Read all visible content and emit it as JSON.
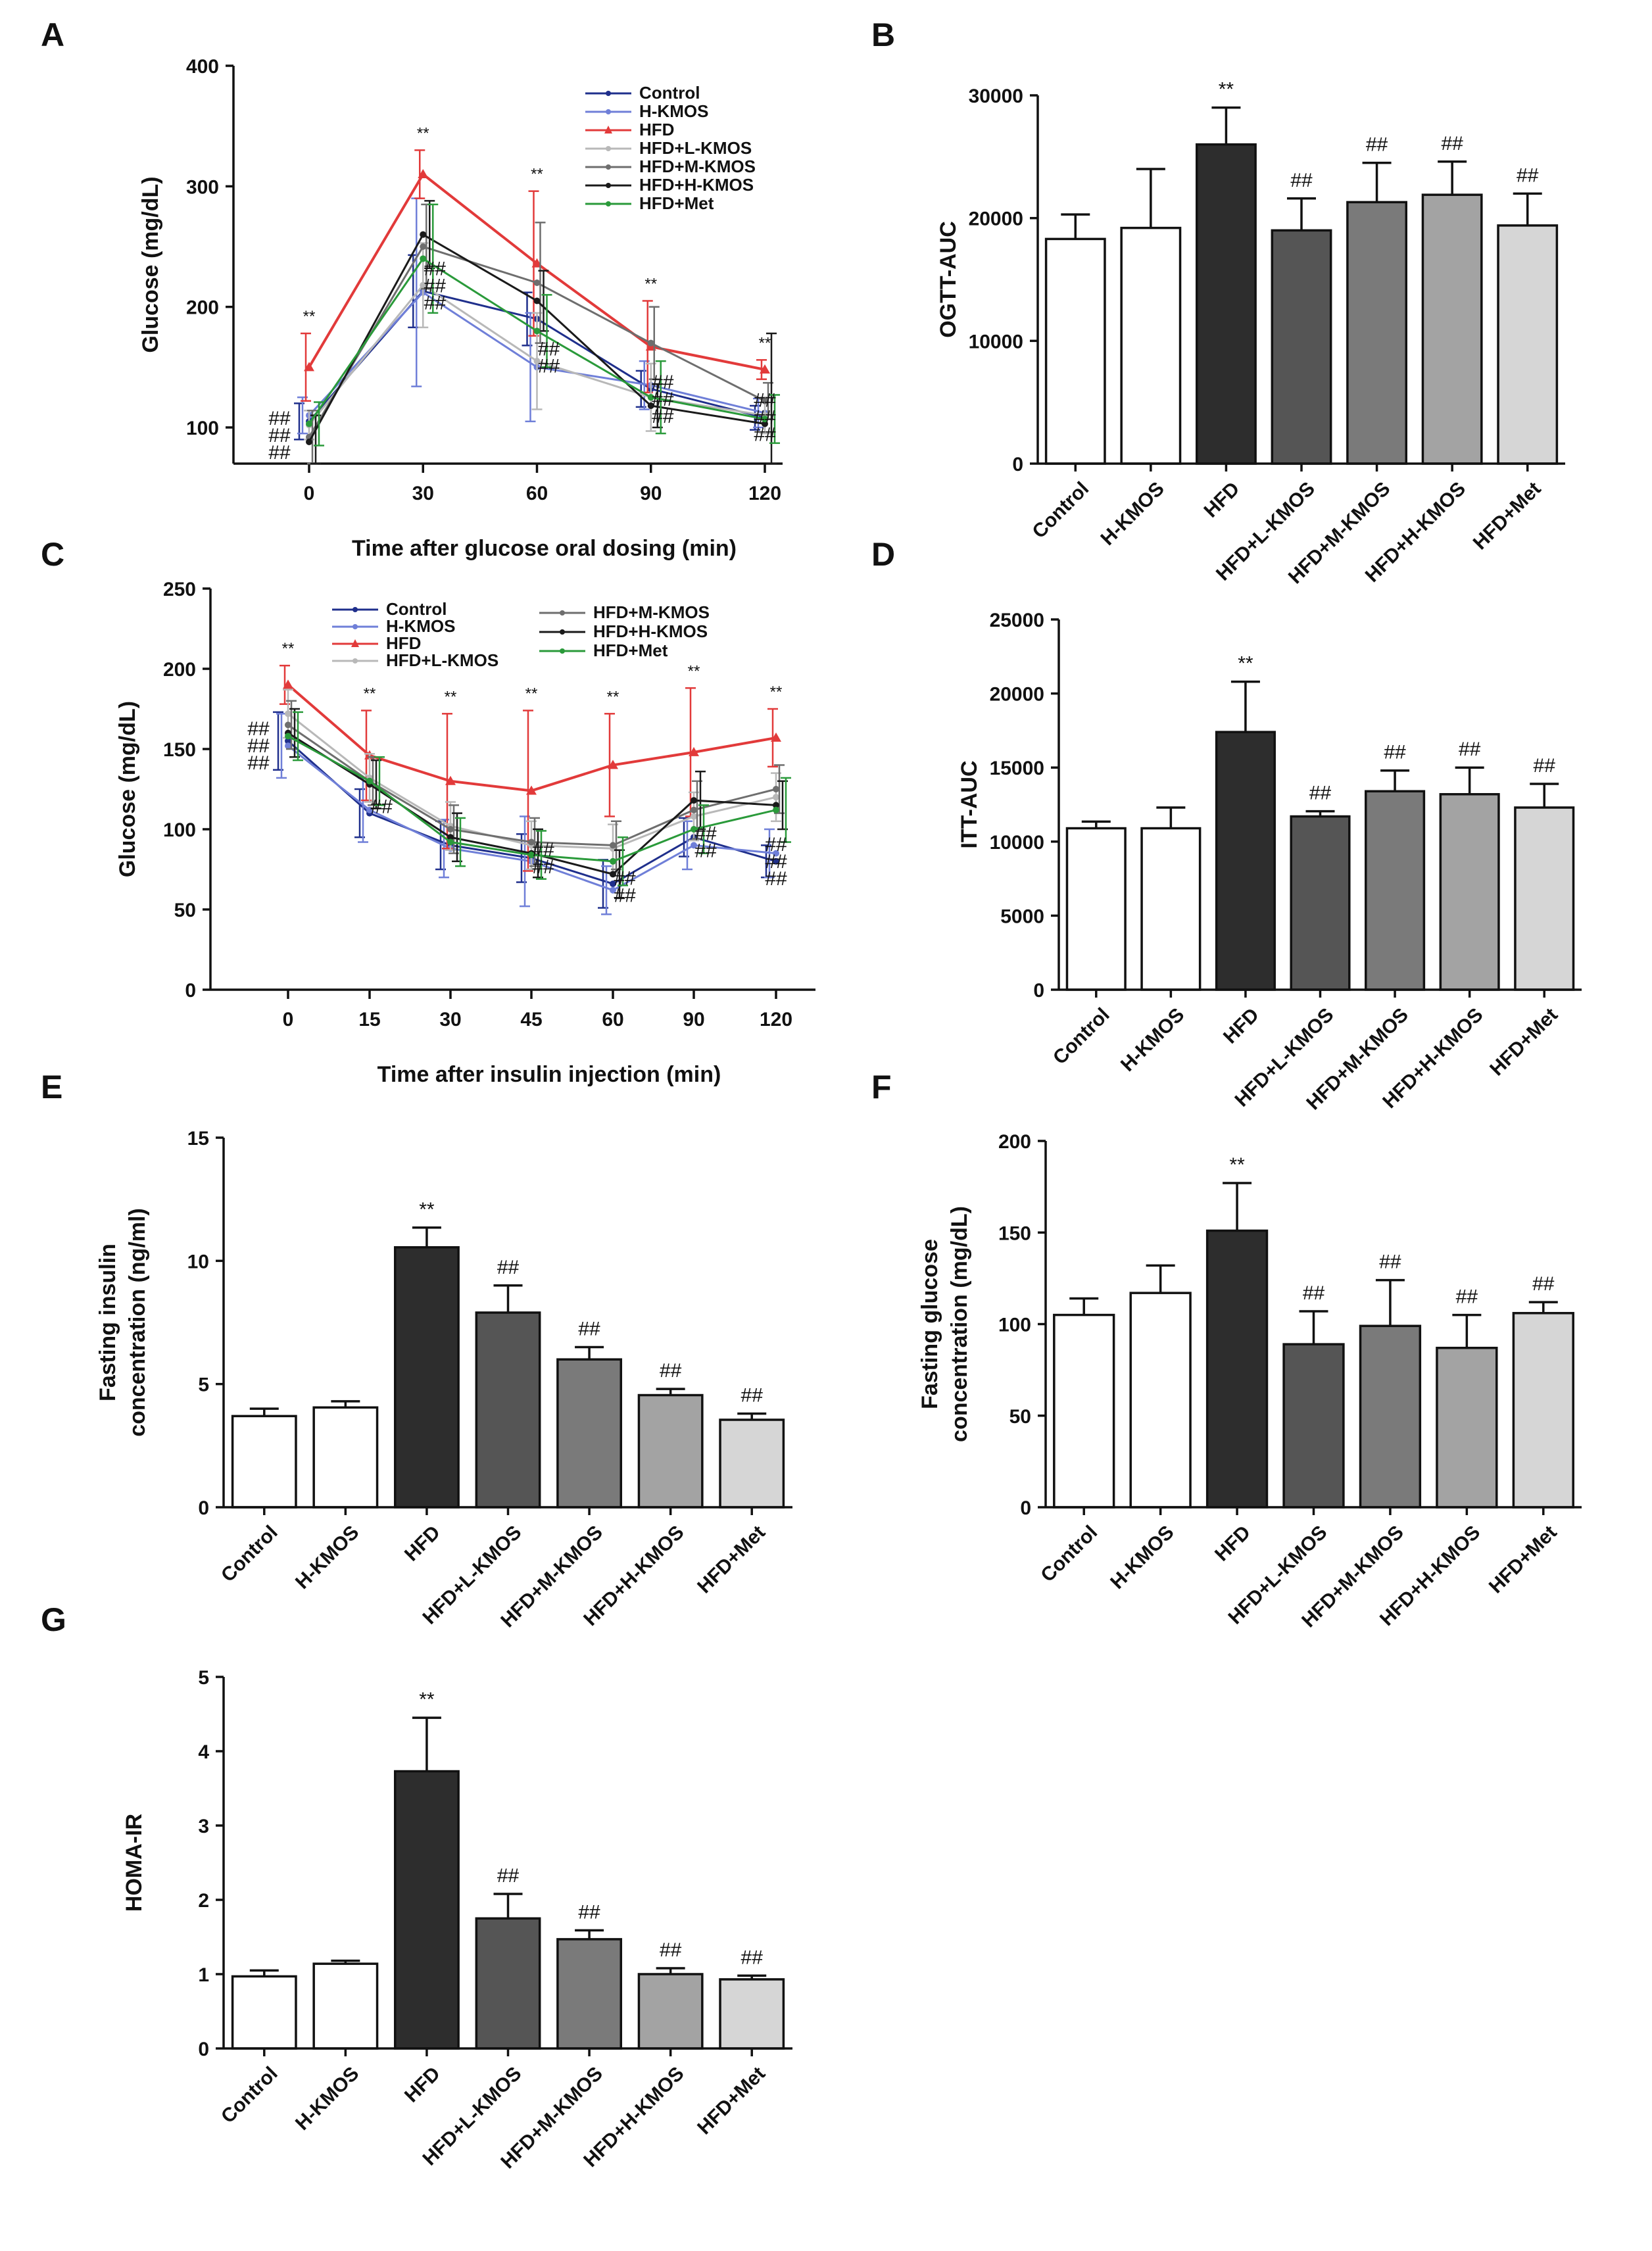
{
  "colors": {
    "Control": "#1f2f8c",
    "H-KMOS": "#6f7fd8",
    "HFD": "#e23a3a",
    "HFD+L-KMOS": "#b8b8b8",
    "HFD+M-KMOS": "#6e6e6e",
    "HFD+H-KMOS": "#1a1a1a",
    "HFD+Met": "#2a9a3a",
    "bar_fills": [
      "#ffffff",
      "#ffffff",
      "#2d2d2d",
      "#555555",
      "#7a7a7a",
      "#a3a3a3",
      "#d6d6d6"
    ]
  },
  "chart_data": [
    {
      "id": "A",
      "panel_label": "A",
      "type": "line",
      "title": "",
      "xlabel": "Time after glucose oral dosing (min)",
      "ylabel": "Glucose (mg/dL)",
      "x": [
        0,
        30,
        60,
        90,
        120
      ],
      "xlim": [
        -20,
        130
      ],
      "ylim": [
        70,
        400
      ],
      "yticks": [
        100,
        200,
        300,
        400
      ],
      "xticks": [
        0,
        30,
        60,
        90,
        120
      ],
      "series": [
        {
          "name": "Control",
          "values": [
            105,
            213,
            190,
            132,
            108
          ],
          "errors": [
            15,
            30,
            22,
            15,
            10
          ]
        },
        {
          "name": "H-KMOS",
          "values": [
            110,
            212,
            150,
            135,
            112
          ],
          "errors": [
            15,
            78,
            45,
            20,
            12
          ]
        },
        {
          "name": "HFD",
          "values": [
            150,
            310,
            236,
            167,
            148
          ],
          "errors": [
            28,
            20,
            60,
            38,
            8
          ]
        },
        {
          "name": "HFD+L-KMOS",
          "values": [
            102,
            218,
            155,
            125,
            110
          ],
          "errors": [
            12,
            35,
            40,
            28,
            15
          ]
        },
        {
          "name": "HFD+M-KMOS",
          "values": [
            92,
            250,
            220,
            170,
            122
          ],
          "errors": [
            22,
            35,
            50,
            30,
            15
          ]
        },
        {
          "name": "HFD+H-KMOS",
          "values": [
            88,
            260,
            205,
            118,
            103
          ],
          "errors": [
            22,
            28,
            25,
            18,
            75
          ]
        },
        {
          "name": "HFD+Met",
          "values": [
            103,
            240,
            180,
            125,
            107
          ],
          "errors": [
            18,
            45,
            30,
            30,
            20
          ]
        }
      ],
      "legend": {
        "entries": [
          "Control",
          "H-KMOS",
          "HFD",
          "HFD+L-KMOS",
          "HFD+M-KMOS",
          "HFD+H-KMOS",
          "HFD+Met"
        ],
        "placement": "top-right"
      },
      "annotations": {
        "stars": [
          "**",
          "**",
          "**",
          "**",
          "**"
        ],
        "hashes": [
          [
            "##",
            "##",
            "##"
          ],
          [
            "##",
            "##",
            "##"
          ],
          [
            "##",
            "##"
          ],
          [
            "##",
            "##",
            "##"
          ],
          [
            "##",
            "##",
            "##"
          ]
        ]
      }
    },
    {
      "id": "B",
      "panel_label": "B",
      "type": "bar",
      "title": "",
      "xlabel": "",
      "ylabel": "OGTT-AUC",
      "categories": [
        "Control",
        "H-KMOS",
        "HFD",
        "HFD+L-KMOS",
        "HFD+M-KMOS",
        "HFD+H-KMOS",
        "HFD+Met"
      ],
      "values": [
        18300,
        19200,
        26000,
        19000,
        21300,
        21900,
        19400
      ],
      "errors": [
        2000,
        4800,
        3000,
        2600,
        3200,
        2700,
        2600
      ],
      "ylim": [
        0,
        30000
      ],
      "yticks": [
        "0",
        "10000",
        "20000",
        "30000"
      ],
      "annotations": [
        "",
        "",
        "**",
        "##",
        "##",
        "##",
        "##"
      ]
    },
    {
      "id": "C",
      "panel_label": "C",
      "type": "line",
      "title": "",
      "xlabel": "Time after insulin injection (min)",
      "ylabel": "Glucose (mg/dL)",
      "x": [
        0,
        15,
        30,
        45,
        60,
        90,
        120
      ],
      "x_tick_labels": [
        "0",
        "15",
        "30",
        "45",
        "60",
        "90",
        "120"
      ],
      "ylim": [
        0,
        250
      ],
      "yticks": [
        0,
        50,
        100,
        150,
        200,
        250
      ],
      "series": [
        {
          "name": "Control",
          "values": [
            155,
            110,
            90,
            82,
            66,
            95,
            80
          ],
          "errors": [
            18,
            15,
            15,
            15,
            15,
            12,
            10
          ]
        },
        {
          "name": "H-KMOS",
          "values": [
            152,
            112,
            88,
            80,
            62,
            90,
            85
          ],
          "errors": [
            20,
            20,
            18,
            28,
            15,
            15,
            15
          ]
        },
        {
          "name": "HFD",
          "values": [
            190,
            146,
            130,
            124,
            140,
            148,
            157
          ],
          "errors": [
            12,
            28,
            42,
            50,
            32,
            40,
            18
          ]
        },
        {
          "name": "HFD+L-KMOS",
          "values": [
            172,
            132,
            102,
            90,
            88,
            108,
            120
          ],
          "errors": [
            15,
            15,
            15,
            15,
            15,
            15,
            15
          ]
        },
        {
          "name": "HFD+M-KMOS",
          "values": [
            165,
            130,
            100,
            92,
            90,
            112,
            125
          ],
          "errors": [
            15,
            15,
            15,
            15,
            15,
            18,
            15
          ]
        },
        {
          "name": "HFD+H-KMOS",
          "values": [
            160,
            128,
            95,
            85,
            72,
            118,
            115
          ],
          "errors": [
            15,
            15,
            15,
            15,
            15,
            18,
            15
          ]
        },
        {
          "name": "HFD+Met",
          "values": [
            158,
            130,
            92,
            84,
            80,
            100,
            112
          ],
          "errors": [
            15,
            15,
            15,
            15,
            15,
            15,
            20
          ]
        }
      ],
      "legend": {
        "entries": [
          "Control",
          "H-KMOS",
          "HFD",
          "HFD+L-KMOS",
          "HFD+M-KMOS",
          "HFD+H-KMOS",
          "HFD+Met"
        ],
        "placement": "top-center"
      },
      "annotations": {
        "stars": [
          "**",
          "**",
          "**",
          "**",
          "**",
          "**",
          "**"
        ],
        "hashes": [
          [
            "##",
            "##",
            "##"
          ],
          [
            "##"
          ],
          [],
          [
            "##",
            "##"
          ],
          [
            "##",
            "##"
          ],
          [
            "##",
            "##"
          ],
          [
            "##",
            "##",
            "##"
          ]
        ]
      }
    },
    {
      "id": "D",
      "panel_label": "D",
      "type": "bar",
      "title": "",
      "xlabel": "",
      "ylabel": "ITT-AUC",
      "categories": [
        "Control",
        "H-KMOS",
        "HFD",
        "HFD+L-KMOS",
        "HFD+M-KMOS",
        "HFD+H-KMOS",
        "HFD+Met"
      ],
      "values": [
        10900,
        10900,
        17400,
        11700,
        13400,
        13200,
        12300
      ],
      "errors": [
        450,
        1400,
        3400,
        350,
        1400,
        1800,
        1600
      ],
      "ylim": [
        0,
        25000
      ],
      "yticks": [
        "0",
        "5000",
        "10000",
        "15000",
        "20000",
        "25000"
      ],
      "annotations": [
        "",
        "",
        "**",
        "##",
        "##",
        "##",
        "##"
      ]
    },
    {
      "id": "E",
      "panel_label": "E",
      "type": "bar",
      "title": "",
      "xlabel": "",
      "ylabel": "Fasting insulin",
      "ylabel2": "concentration (ng/ml)",
      "categories": [
        "Control",
        "H-KMOS",
        "HFD",
        "HFD+L-KMOS",
        "HFD+M-KMOS",
        "HFD+H-KMOS",
        "HFD+Met"
      ],
      "values": [
        3.7,
        4.05,
        10.55,
        7.9,
        6.0,
        4.55,
        3.55
      ],
      "errors": [
        0.3,
        0.25,
        0.8,
        1.1,
        0.5,
        0.25,
        0.25
      ],
      "ylim": [
        0,
        15
      ],
      "yticks": [
        "0",
        "5",
        "10",
        "15"
      ],
      "annotations": [
        "",
        "",
        "**",
        "##",
        "##",
        "##",
        "##"
      ]
    },
    {
      "id": "F",
      "panel_label": "F",
      "type": "bar",
      "title": "",
      "xlabel": "",
      "ylabel": "Fasting glucose",
      "ylabel2": "concentration (mg/dL)",
      "categories": [
        "Control",
        "H-KMOS",
        "HFD",
        "HFD+L-KMOS",
        "HFD+M-KMOS",
        "HFD+H-KMOS",
        "HFD+Met"
      ],
      "values": [
        105,
        117,
        151,
        89,
        99,
        87,
        106
      ],
      "errors": [
        9,
        15,
        26,
        18,
        25,
        18,
        6
      ],
      "ylim": [
        0,
        200
      ],
      "yticks": [
        "0",
        "50",
        "100",
        "150",
        "200"
      ],
      "annotations": [
        "",
        "",
        "**",
        "##",
        "##",
        "##",
        "##"
      ]
    },
    {
      "id": "G",
      "panel_label": "G",
      "type": "bar",
      "title": "",
      "xlabel": "",
      "ylabel": "HOMA-IR",
      "categories": [
        "Control",
        "H-KMOS",
        "HFD",
        "HFD+L-KMOS",
        "HFD+M-KMOS",
        "HFD+H-KMOS",
        "HFD+Met"
      ],
      "values": [
        0.97,
        1.14,
        3.73,
        1.75,
        1.47,
        1.0,
        0.93
      ],
      "errors": [
        0.08,
        0.04,
        0.72,
        0.33,
        0.12,
        0.08,
        0.05
      ],
      "ylim": [
        0,
        5
      ],
      "yticks": [
        "0",
        "1",
        "2",
        "3",
        "4",
        "5"
      ],
      "annotations": [
        "",
        "",
        "**",
        "##",
        "##",
        "##",
        "##"
      ]
    }
  ]
}
